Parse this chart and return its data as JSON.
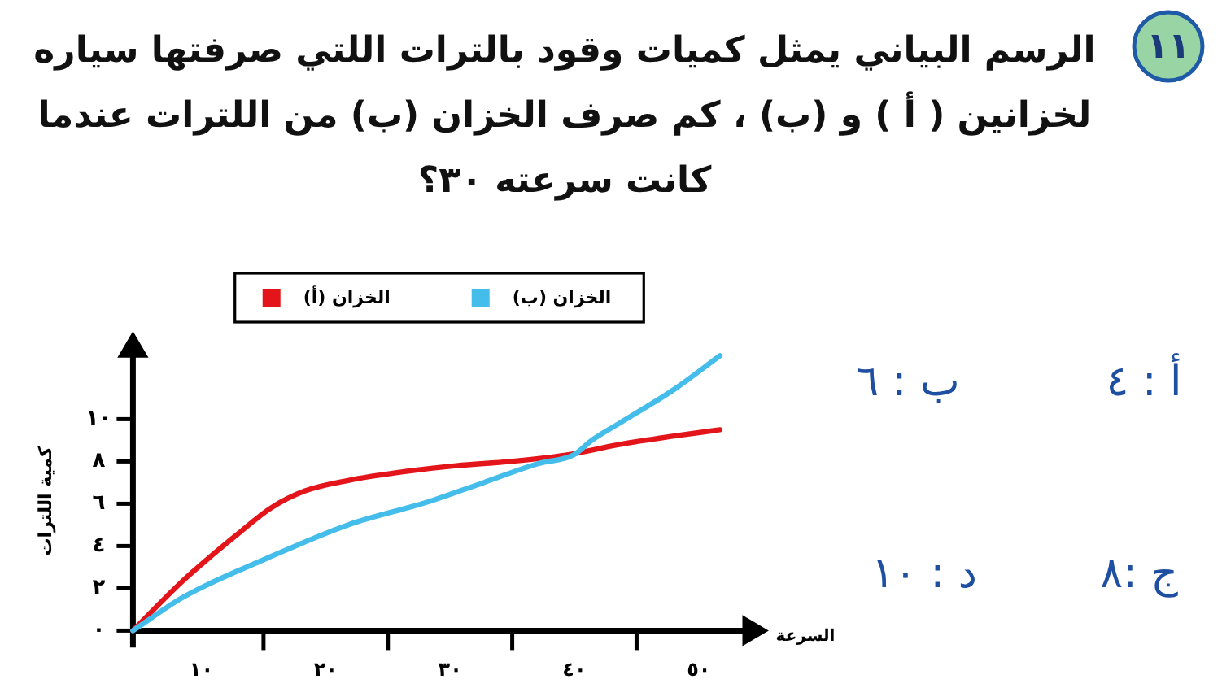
{
  "chart_data": {
    "type": "line",
    "title": "الرسم البياني يمثل كميات وقود بالترات اللتي صرفتها سياره لخزانين ( أ ) و (ب) ، كم صرف الخزان (ب) من اللترات عندما كانت سرعته ٣٠؟",
    "xlabel": "السرعة",
    "ylabel": "كمية اللترات",
    "series": [
      {
        "name": "الخزان (أ)",
        "color": "#e3151a",
        "x": [
          4.5,
          8.6,
          13.0,
          15.6,
          18.3,
          21.8,
          26.1,
          30.5,
          34.9,
          39.3,
          43.6,
          48.0,
          51.7
        ],
        "values": [
          0,
          2.4,
          4.6,
          5.8,
          6.6,
          7.1,
          7.5,
          7.8,
          8.0,
          8.3,
          8.8,
          9.2,
          9.5
        ]
      },
      {
        "name": "الخزان (ب)",
        "color": "#45bdea",
        "x": [
          4.5,
          8.6,
          15.2,
          21.8,
          28.3,
          32.7,
          37.1,
          39.9,
          41.4,
          43.6,
          48.0,
          51.7
        ],
        "values": [
          0,
          1.6,
          3.4,
          5.0,
          6.1,
          7.0,
          7.9,
          8.3,
          9.0,
          9.8,
          11.4,
          13.0
        ]
      }
    ],
    "xlim": [
      4.5,
      54
    ],
    "ylim": [
      -0.8,
      13.2
    ],
    "xticks": [
      {
        "value": 10,
        "label": "١٠"
      },
      {
        "value": 15,
        "label": null
      },
      {
        "value": 20,
        "label": "٢٠"
      },
      {
        "value": 25,
        "label": null
      },
      {
        "value": 30,
        "label": "٣٠"
      },
      {
        "value": 35,
        "label": null
      },
      {
        "value": 40,
        "label": "٤٠"
      },
      {
        "value": 45,
        "label": null
      },
      {
        "value": 50,
        "label": "٥٠"
      }
    ],
    "yticks": [
      {
        "value": 0,
        "label": "٠"
      },
      {
        "value": 2,
        "label": "٢"
      },
      {
        "value": 4,
        "label": "٤"
      },
      {
        "value": 6,
        "label": "٦"
      },
      {
        "value": 8,
        "label": "٨"
      },
      {
        "value": 10,
        "label": "١٠"
      }
    ],
    "legend": "top",
    "annotations": [
      "١١",
      "أ : ٤",
      "ب : ٦",
      "ج :٨",
      "د : ١٠"
    ]
  }
}
